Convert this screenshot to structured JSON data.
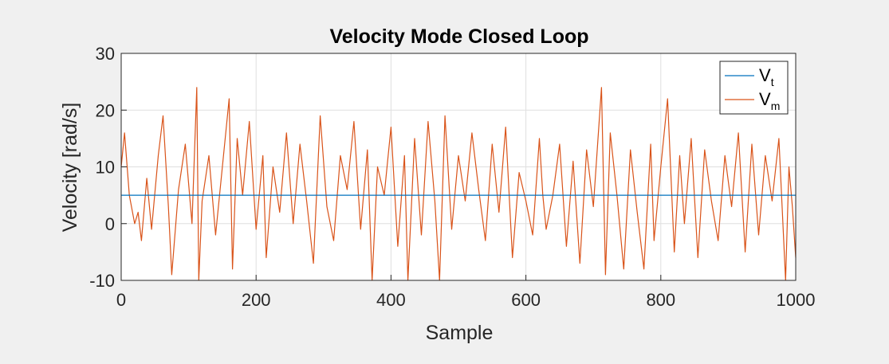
{
  "chart_data": {
    "type": "line",
    "title": "Velocity Mode Closed Loop",
    "xlabel": "Sample",
    "ylabel": "Velocity [rad/s]",
    "xlim": [
      0,
      1000
    ],
    "ylim": [
      -10,
      30
    ],
    "xticks": [
      0,
      200,
      400,
      600,
      800,
      1000
    ],
    "xtick_labels": [
      "0",
      "200",
      "400",
      "600",
      "800",
      "1000"
    ],
    "yticks": [
      -10,
      0,
      10,
      20,
      30
    ],
    "ytick_labels": [
      "-10",
      "0",
      "10",
      "20",
      "30"
    ],
    "grid": true,
    "legend_position": "top-right",
    "series": [
      {
        "name": "V_t",
        "label_main": "V",
        "label_sub": "t",
        "color": "#0072BD",
        "x": [
          0,
          1000
        ],
        "y": [
          5,
          5
        ]
      },
      {
        "name": "V_m",
        "label_main": "V",
        "label_sub": "m",
        "color": "#D95319",
        "x": [
          0,
          5,
          12,
          20,
          25,
          30,
          38,
          45,
          55,
          62,
          70,
          75,
          85,
          95,
          105,
          112,
          115,
          120,
          130,
          140,
          150,
          160,
          165,
          172,
          180,
          190,
          200,
          210,
          215,
          225,
          235,
          245,
          255,
          265,
          275,
          285,
          295,
          305,
          315,
          325,
          335,
          345,
          355,
          365,
          372,
          380,
          390,
          400,
          410,
          420,
          425,
          435,
          445,
          455,
          465,
          472,
          480,
          490,
          500,
          510,
          520,
          530,
          540,
          550,
          560,
          570,
          580,
          590,
          600,
          610,
          620,
          625,
          630,
          640,
          650,
          660,
          670,
          680,
          690,
          700,
          712,
          718,
          725,
          735,
          745,
          755,
          765,
          775,
          785,
          790,
          800,
          810,
          820,
          828,
          835,
          845,
          855,
          865,
          875,
          885,
          895,
          905,
          915,
          925,
          935,
          945,
          955,
          965,
          975,
          985,
          990,
          995,
          1000
        ],
        "y": [
          10,
          16,
          5,
          0,
          2,
          -3,
          8,
          -1,
          12,
          19,
          3,
          -9,
          6,
          14,
          0,
          24,
          -10,
          4,
          12,
          -2,
          10,
          22,
          -8,
          15,
          5,
          18,
          -1,
          12,
          -6,
          10,
          2,
          16,
          0,
          14,
          4,
          -7,
          19,
          3,
          -3,
          12,
          6,
          18,
          -1,
          13,
          -10,
          10,
          5,
          17,
          -4,
          12,
          -10,
          15,
          -2,
          18,
          4,
          -10,
          19,
          -1,
          12,
          4,
          16,
          6,
          -3,
          14,
          2,
          17,
          -6,
          9,
          4,
          -2,
          15,
          5,
          -1,
          5,
          14,
          -4,
          11,
          -7,
          13,
          3,
          24,
          -9,
          16,
          5,
          -8,
          13,
          2,
          -8,
          14,
          -3,
          10,
          22,
          -5,
          12,
          0,
          15,
          -6,
          13,
          4,
          -3,
          12,
          3,
          16,
          -5,
          14,
          -2,
          12,
          4,
          15,
          -10,
          10,
          3,
          -6
        ]
      }
    ]
  }
}
